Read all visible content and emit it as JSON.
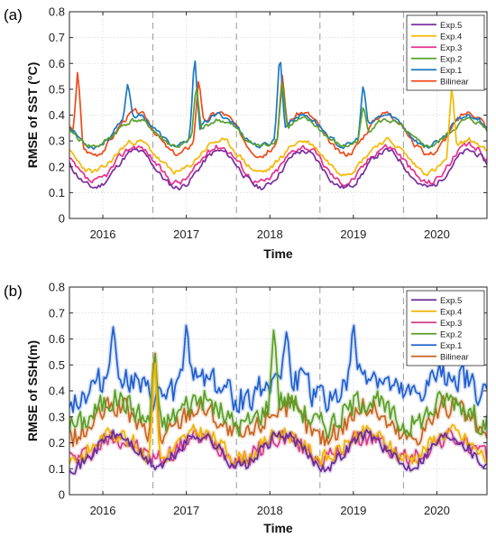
{
  "chart_data": [
    {
      "type": "line",
      "panel_label": "(a)",
      "xlabel": "Time",
      "ylabel": "RMSE  of  SST (°C)",
      "x_tick_labels": [
        "2016",
        "2017",
        "2018",
        "2019",
        "2020"
      ],
      "x_tick_positions": [
        2016.0,
        2017.0,
        2018.0,
        2019.0,
        2020.0
      ],
      "xlim": [
        2015.6,
        2020.6
      ],
      "ylim": [
        0,
        0.8
      ],
      "y_ticks": [
        0,
        0.1,
        0.2,
        0.3,
        0.4,
        0.5,
        0.6,
        0.7,
        0.8
      ],
      "y_tick_labels": [
        "0",
        "0.1",
        "0.2",
        "0.3",
        "0.4",
        "0.5",
        "0.6",
        "0.7",
        "0.8"
      ],
      "vertical_dashed_lines": [
        2016.6,
        2017.6,
        2018.6,
        2019.6
      ],
      "grid": "dotted",
      "legend_position": "top-right",
      "style": "sst",
      "series": [
        {
          "name": "Exp.5",
          "color": "#7b2d9e",
          "base": 0.19,
          "amp": 0.07,
          "noise": 0.022,
          "seed": 11,
          "spikes": []
        },
        {
          "name": "Exp.4",
          "color": "#f5b800",
          "base": 0.24,
          "amp": 0.06,
          "noise": 0.022,
          "seed": 23,
          "spikes": [
            [
              2020.18,
              0.52
            ]
          ]
        },
        {
          "name": "Exp.3",
          "color": "#e8308f",
          "base": 0.21,
          "amp": 0.07,
          "noise": 0.025,
          "seed": 37,
          "spikes": []
        },
        {
          "name": "Exp.2",
          "color": "#5aa02c",
          "base": 0.33,
          "amp": 0.05,
          "noise": 0.02,
          "seed": 41,
          "spikes": [
            [
              2017.12,
              0.52
            ],
            [
              2018.15,
              0.53
            ],
            [
              2019.12,
              0.44
            ]
          ]
        },
        {
          "name": "Exp.1",
          "color": "#1a78c2",
          "base": 0.34,
          "amp": 0.06,
          "noise": 0.02,
          "seed": 53,
          "spikes": [
            [
              2016.3,
              0.53
            ],
            [
              2017.1,
              0.64
            ],
            [
              2018.12,
              0.65
            ],
            [
              2019.12,
              0.53
            ]
          ]
        },
        {
          "name": "Bilinear",
          "color": "#f04a1a",
          "base": 0.33,
          "amp": 0.08,
          "noise": 0.022,
          "seed": 67,
          "spikes": [
            [
              2015.7,
              0.58
            ],
            [
              2017.15,
              0.55
            ],
            [
              2018.15,
              0.56
            ]
          ]
        }
      ]
    },
    {
      "type": "line",
      "panel_label": "(b)",
      "xlabel": "Time",
      "ylabel": "RMSE  of  SSH(m)",
      "x_tick_labels": [
        "2016",
        "2017",
        "2018",
        "2019",
        "2020"
      ],
      "x_tick_positions": [
        2016.0,
        2017.0,
        2018.0,
        2019.0,
        2020.0
      ],
      "xlim": [
        2015.6,
        2020.6
      ],
      "ylim": [
        0,
        0.8
      ],
      "y_ticks": [
        0,
        0.1,
        0.2,
        0.3,
        0.4,
        0.5,
        0.6,
        0.7,
        0.8
      ],
      "y_tick_labels": [
        "0",
        "0.1",
        "0.2",
        "0.3",
        "0.4",
        "0.5",
        "0.6",
        "0.7",
        "0.8"
      ],
      "vertical_dashed_lines": [
        2016.6,
        2017.6,
        2018.6,
        2019.6
      ],
      "grid": "dotted",
      "legend_position": "top-right",
      "style": "ssh",
      "series": [
        {
          "name": "Exp.5",
          "color": "#6a2a9a",
          "base": 0.17,
          "amp": 0.06,
          "noise": 0.03,
          "seed": 71,
          "spikes": []
        },
        {
          "name": "Exp.4",
          "color": "#f0b400",
          "base": 0.19,
          "amp": 0.05,
          "noise": 0.04,
          "seed": 83,
          "spikes": [
            [
              2016.62,
              0.55
            ]
          ]
        },
        {
          "name": "Exp.3",
          "color": "#d63a8a",
          "base": 0.18,
          "amp": 0.04,
          "noise": 0.045,
          "seed": 97,
          "spikes": []
        },
        {
          "name": "Exp.2",
          "color": "#5a9e26",
          "base": 0.32,
          "amp": 0.05,
          "noise": 0.06,
          "seed": 101,
          "spikes": [
            [
              2018.05,
              0.66
            ],
            [
              2016.62,
              0.57
            ]
          ]
        },
        {
          "name": "Exp.1",
          "color": "#1f5fcf",
          "base": 0.42,
          "amp": 0.05,
          "noise": 0.07,
          "seed": 113,
          "spikes": [
            [
              2016.12,
              0.66
            ],
            [
              2017.0,
              0.66
            ],
            [
              2019.0,
              0.67
            ],
            [
              2018.2,
              0.63
            ]
          ]
        },
        {
          "name": "Bilinear",
          "color": "#c8641e",
          "base": 0.28,
          "amp": 0.06,
          "noise": 0.055,
          "seed": 127,
          "spikes": [
            [
              2016.62,
              0.58
            ]
          ]
        }
      ]
    }
  ]
}
